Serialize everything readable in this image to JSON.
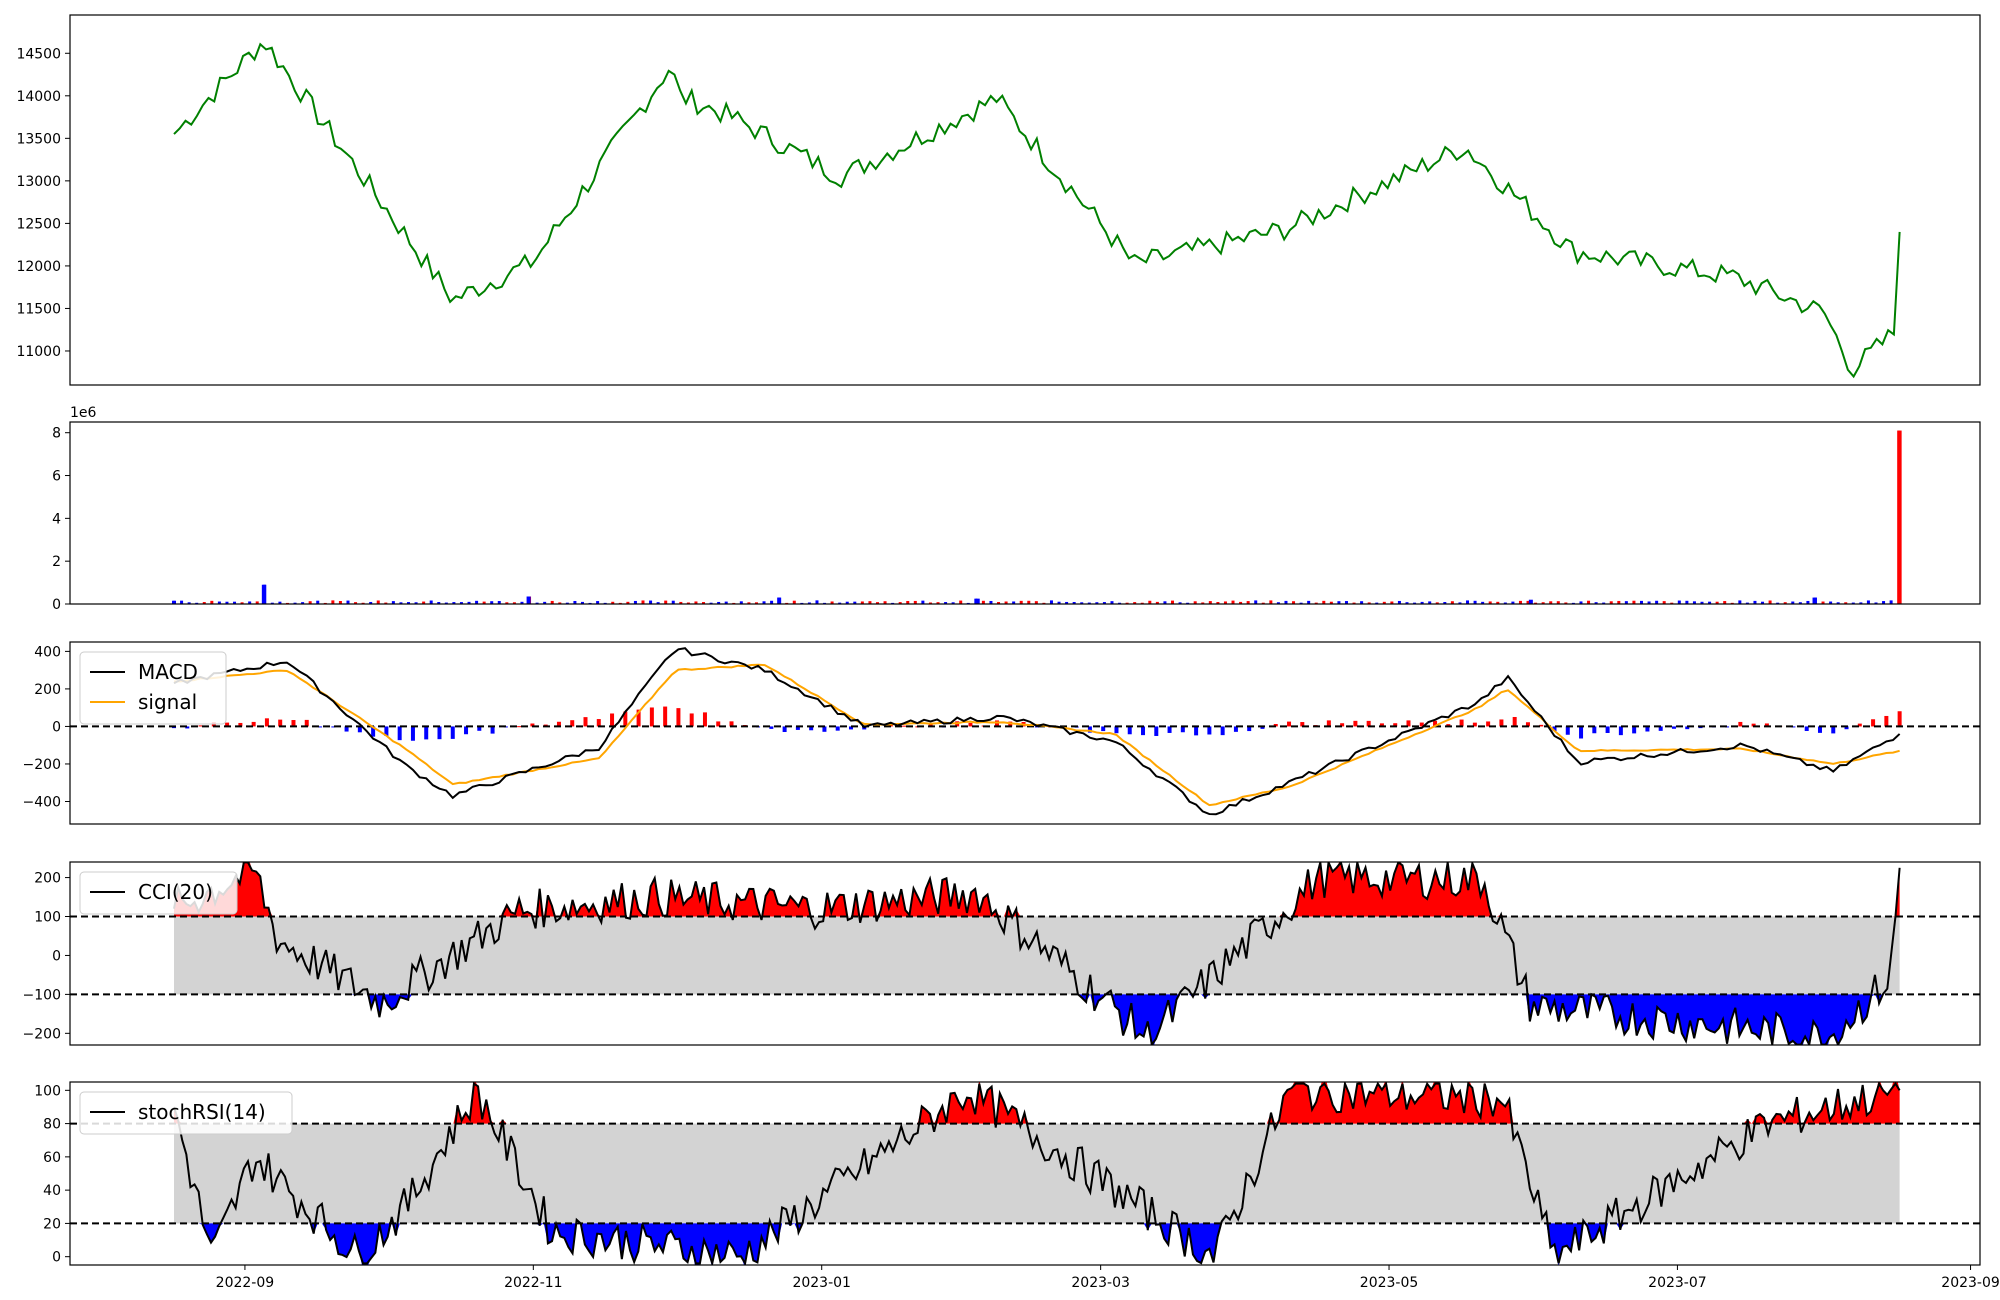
{
  "figure": {
    "x_ticks": [
      "2022-09",
      "2022-11",
      "2023-01",
      "2023-03",
      "2023-05",
      "2023-07",
      "2023-09"
    ],
    "x_ticks_date": [
      "2022-09-01",
      "2022-11-01",
      "2023-01-01",
      "2023-03-01",
      "2023-05-01",
      "2023-07-01",
      "2023-09-01"
    ],
    "x_range": [
      "2022-07-26",
      "2023-09-03"
    ]
  },
  "chart_data": [
    {
      "type": "line",
      "panel": "price",
      "legend": false,
      "x": [
        "2022-08-17",
        "2022-09-05",
        "2022-09-16",
        "2022-10-15",
        "2022-11-01",
        "2022-11-30",
        "2022-12-02",
        "2022-12-13",
        "2023-01-05",
        "2023-02-07",
        "2023-03-08",
        "2023-04-09",
        "2023-05-17",
        "2023-06-09",
        "2023-07-13",
        "2023-08-01",
        "2023-08-07",
        "2023-08-16",
        "2023-08-17"
      ],
      "series": [
        {
          "values": [
            13550,
            14650,
            13800,
            11600,
            12050,
            14350,
            14000,
            13750,
            13050,
            13970,
            12020,
            12430,
            13400,
            12170,
            11870,
            11450,
            10780,
            11220,
            12400
          ],
          "color": "#008000"
        }
      ],
      "yticks": [
        "11000",
        "11500",
        "12000",
        "12500",
        "13000",
        "13500",
        "14000",
        "14500"
      ],
      "ylim": [
        10600,
        14950
      ]
    },
    {
      "type": "bar",
      "panel": "volume",
      "legend": false,
      "axis_offset_label": "1e6",
      "x": [
        "2022-08-17",
        "2022-09-05",
        "2022-10-31",
        "2022-12-23",
        "2023-02-03",
        "2023-05-31",
        "2023-07-30",
        "2023-08-17"
      ],
      "values": [
        0.15,
        0.9,
        0.35,
        0.3,
        0.25,
        0.2,
        0.3,
        8.1
      ],
      "colors_by_direction": {
        "up": "#ff0000",
        "down": "#0000ff"
      },
      "yticks": [
        "0",
        "2",
        "4",
        "6",
        "8"
      ],
      "ylim": [
        0,
        8.5
      ]
    },
    {
      "type": "line",
      "panel": "macd",
      "legend": {
        "placement": "upper-left"
      },
      "x": [
        "2022-08-17",
        "2022-09-10",
        "2022-10-05",
        "2022-10-15",
        "2022-11-15",
        "2022-12-01",
        "2022-12-20",
        "2023-01-10",
        "2023-02-08",
        "2023-03-04",
        "2023-03-24",
        "2023-04-10",
        "2023-05-20",
        "2023-05-26",
        "2023-06-10",
        "2023-07-15",
        "2023-08-03",
        "2023-08-17"
      ],
      "series": [
        {
          "name": "MACD",
          "color": "#000000",
          "values": [
            230,
            350,
            -210,
            -370,
            -110,
            415,
            300,
            0,
            50,
            -80,
            -470,
            -300,
            130,
            260,
            -190,
            -100,
            -240,
            -40
          ]
        },
        {
          "name": "signal",
          "color": "#ffa500",
          "values": [
            240,
            300,
            -120,
            -310,
            -170,
            300,
            330,
            10,
            25,
            -40,
            -420,
            -320,
            100,
            200,
            -130,
            -120,
            -200,
            -130
          ]
        }
      ],
      "histogram_colors": {
        "positive": "#ff0000",
        "negative": "#0000ff"
      },
      "reference_line": 0,
      "yticks": [
        "−400",
        "−200",
        "0",
        "200",
        "400"
      ],
      "ylim": [
        -520,
        450
      ]
    },
    {
      "type": "line",
      "panel": "cci",
      "legend": {
        "placement": "upper-left"
      },
      "x": [
        "2022-08-17",
        "2022-09-03",
        "2022-09-08",
        "2022-09-30",
        "2022-10-29",
        "2022-11-27",
        "2022-12-31",
        "2023-02-03",
        "2023-03-11",
        "2023-04-16",
        "2023-05-21",
        "2023-05-31",
        "2023-08-02",
        "2023-08-15",
        "2023-08-17"
      ],
      "series": [
        {
          "name": "CCI(20)",
          "color": "#000000",
          "values": [
            120,
            220,
            40,
            -120,
            115,
            150,
            120,
            160,
            -210,
            200,
            195,
            -130,
            -210,
            -60,
            225
          ]
        }
      ],
      "band": {
        "upper": 100,
        "lower": -100,
        "fill": "#d3d3d3",
        "above_fill": "#ff0000",
        "below_fill": "#0000ff"
      },
      "yticks": [
        "−200",
        "−100",
        "0",
        "100",
        "200"
      ],
      "ylim": [
        -230,
        240
      ]
    },
    {
      "type": "line",
      "panel": "stochrsi",
      "legend": {
        "placement": "upper-left"
      },
      "x": [
        "2022-08-17",
        "2022-08-25",
        "2022-09-03",
        "2022-09-25",
        "2022-10-05",
        "2022-10-20",
        "2022-11-05",
        "2022-12-15",
        "2023-02-01",
        "2023-03-25",
        "2023-04-10",
        "2023-05-25",
        "2023-06-05",
        "2023-07-20",
        "2023-08-17"
      ],
      "series": [
        {
          "name": "stochRSI(14)",
          "color": "#000000",
          "values": [
            90,
            0,
            60,
            0,
            30,
            100,
            15,
            0,
            100,
            0,
            100,
            95,
            0,
            80,
            100
          ]
        }
      ],
      "band": {
        "upper": 80,
        "lower": 20,
        "fill": "#d3d3d3",
        "above_fill": "#ff0000",
        "below_fill": "#0000ff"
      },
      "yticks": [
        "0",
        "20",
        "40",
        "60",
        "80",
        "100"
      ],
      "ylim": [
        -5,
        105
      ]
    }
  ]
}
